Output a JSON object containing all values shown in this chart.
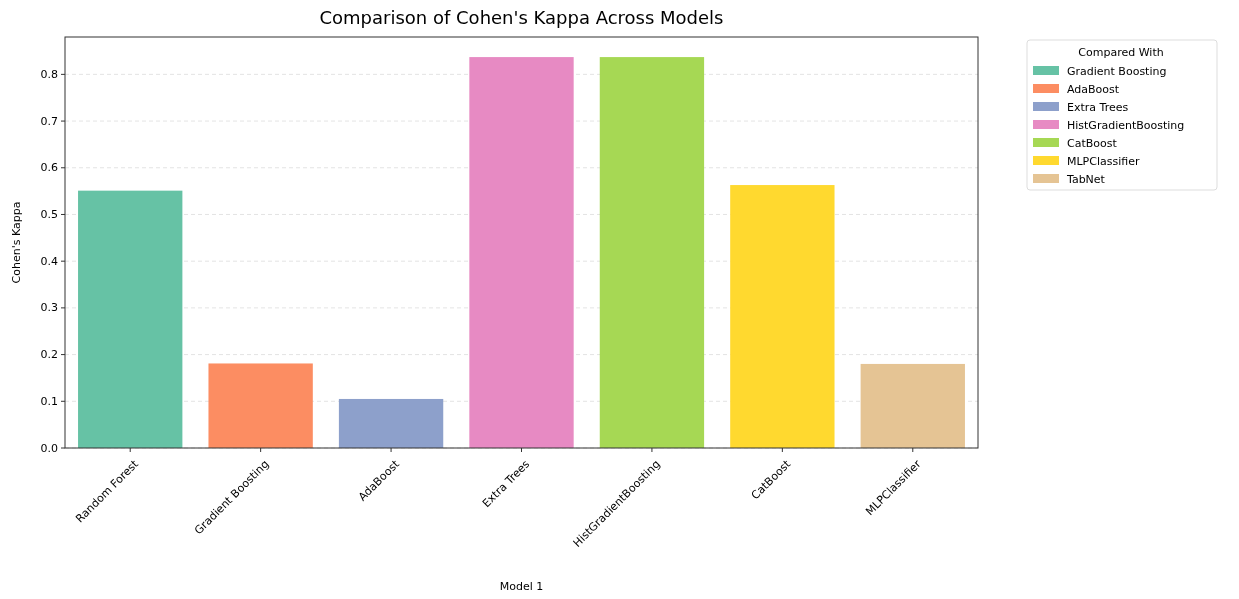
{
  "chart_data": {
    "type": "bar",
    "title": "Comparison of Cohen's Kappa Across Models",
    "xlabel": "Model 1",
    "ylabel": "Cohen's Kappa",
    "legend_title": "Compared With",
    "categories": [
      "Random Forest",
      "Gradient Boosting",
      "AdaBoost",
      "Extra Trees",
      "HistGradientBoosting",
      "CatBoost",
      "MLPClassifier"
    ],
    "series": [
      {
        "name": "Gradient Boosting",
        "color": "#66c2a5",
        "values": [
          0.551,
          null,
          null,
          null,
          null,
          null,
          null
        ]
      },
      {
        "name": "AdaBoost",
        "color": "#fc8d62",
        "values": [
          null,
          0.181,
          null,
          null,
          null,
          null,
          null
        ]
      },
      {
        "name": "Extra Trees",
        "color": "#8da0cb",
        "values": [
          null,
          null,
          0.105,
          null,
          null,
          null,
          null
        ]
      },
      {
        "name": "HistGradientBoosting",
        "color": "#e78ac3",
        "values": [
          null,
          null,
          null,
          0.837,
          null,
          null,
          null
        ]
      },
      {
        "name": "CatBoost",
        "color": "#a6d854",
        "values": [
          null,
          null,
          null,
          null,
          0.837,
          null,
          null
        ]
      },
      {
        "name": "MLPClassifier",
        "color": "#ffd92f",
        "values": [
          null,
          null,
          null,
          null,
          null,
          0.563,
          null
        ]
      },
      {
        "name": "TabNet",
        "color": "#e5c494",
        "values": [
          null,
          null,
          null,
          null,
          null,
          null,
          0.18
        ]
      }
    ],
    "ylim": [
      0,
      0.88
    ],
    "yticks": [
      {
        "value": 0,
        "label": "0.0"
      },
      0.1,
      0.2,
      0.3,
      0.4,
      0.5,
      0.6,
      0.7,
      0.8
    ],
    "grid": "y",
    "legend": "top right"
  }
}
